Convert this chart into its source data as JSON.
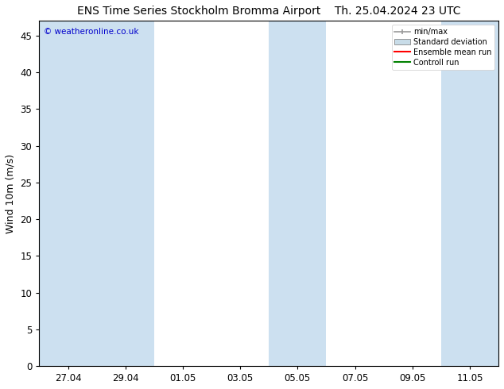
{
  "title_left": "ENS Time Series Stockholm Bromma Airport",
  "title_right": "Th. 25.04.2024 23 UTC",
  "ylabel": "Wind 10m (m/s)",
  "watermark": "© weatheronline.co.uk",
  "watermark_color": "#0000cc",
  "ylim": [
    0,
    47
  ],
  "yticks": [
    0,
    5,
    10,
    15,
    20,
    25,
    30,
    35,
    40,
    45
  ],
  "background_color": "#ffffff",
  "plot_bg_color": "#ffffff",
  "shaded_band_color": "#cce0f0",
  "xtick_labels": [
    "27.04",
    "29.04",
    "01.05",
    "03.05",
    "05.05",
    "07.05",
    "09.05",
    "11.05"
  ],
  "legend_labels": [
    "min/max",
    "Standard deviation",
    "Ensemble mean run",
    "Controll run"
  ],
  "legend_colors": [
    "#aaaaaa",
    "#c8dce8",
    "#ff0000",
    "#008000"
  ],
  "title_fontsize": 10,
  "tick_fontsize": 8.5,
  "ylabel_fontsize": 9
}
